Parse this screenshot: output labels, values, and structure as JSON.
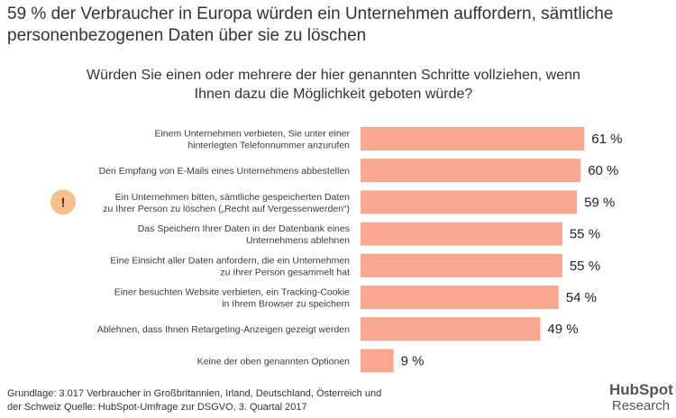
{
  "chart_data": {
    "type": "bar",
    "orientation": "horizontal",
    "title": "59 % der Verbraucher in Europa würden ein Unternehmen auffordern, sämtliche personenbezogenen Daten über sie zu löschen",
    "subtitle": "Würden Sie einen oder mehrere der hier genannten Schritte vollziehen, wenn Ihnen dazu die Möglichkeit geboten würde?",
    "categories": [
      [
        "Einem Unternehmen verbieten, Sie unter einer",
        "hinterlegten Telefonnummer anzurufen"
      ],
      [
        "Den Empfang von E-Mails eines Unternehmens abbestellen"
      ],
      [
        "Ein Unternehmen bitten, sämtliche gespeicherten Daten",
        "zu Ihrer Person zu löschen („Recht auf Vergessenwerden“)"
      ],
      [
        "Das Speichern Ihrer Daten in der Datenbank eines",
        "Unternehmens ablehnen"
      ],
      [
        "Eine Einsicht aller Daten anfordern, die ein Unternehmen",
        "zu Ihrer Person gesammelt hat"
      ],
      [
        "Einer besuchten Website verbieten, ein Tracking-Cookie",
        "in Ihrem Browser zu speichern"
      ],
      [
        "Ablehnen, dass Ihnen Retargeting-Anzeigen gezeigt werden"
      ],
      [
        "Keine der oben genannten Optionen"
      ]
    ],
    "values": [
      61,
      60,
      59,
      55,
      55,
      54,
      49,
      9
    ],
    "value_labels": [
      "61 %",
      "60 %",
      "59 %",
      "55 %",
      "55 %",
      "54 %",
      "49 %",
      "9 %"
    ],
    "highlight_index": 2,
    "highlight_mark": "!",
    "bar_color": "#f7a88e",
    "highlight_color": "#f5c08a",
    "xlim": [
      0,
      100
    ]
  },
  "footnote": {
    "line1": "Grundlage: 3.017 Verbraucher in Großbritannien, Irland, Deutschland, Österreich und",
    "line2": "der Schweiz Quelle: HubSpot-Umfrage zur DSGVO, 3. Quartal 2017"
  },
  "logo": {
    "brand": "HubSpot",
    "sub": "Research",
    "accent": "#f47b5a"
  }
}
